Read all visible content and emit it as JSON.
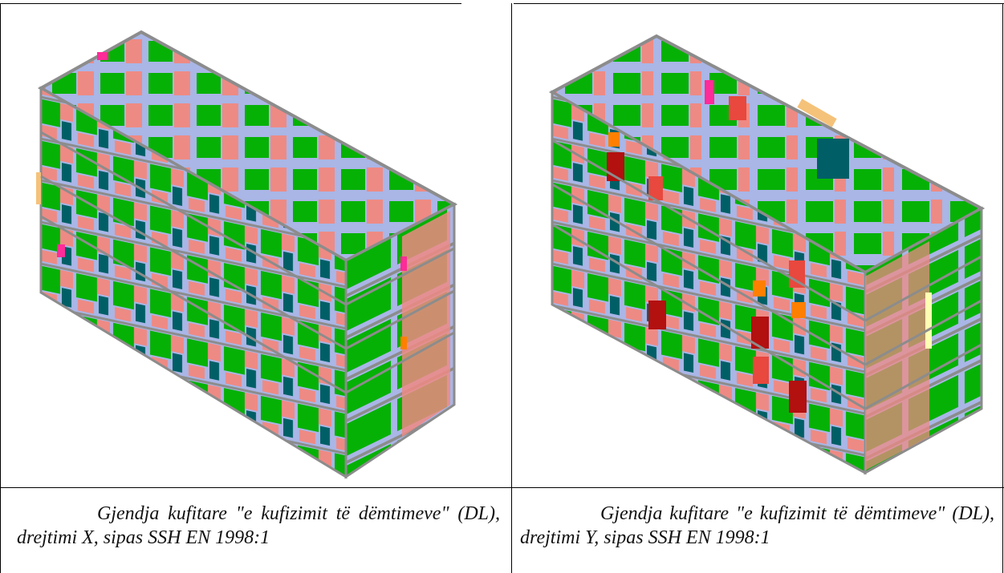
{
  "figures": [
    {
      "caption": "Gjendja kufitare \"e kufizimit të dëmtimeve\" (DL), drejtimi X, sipas SSH EN 1998:1",
      "image_icon": "building-3d-model-dl-x"
    },
    {
      "caption": "Gjendja kufitare \"e kufizimit të dëmtimeve\" (DL), drejtimi Y, sipas SSH EN 1998:1",
      "image_icon": "building-3d-model-dl-y"
    }
  ],
  "colors": {
    "green": "#06b106",
    "pink": "#ee8a84",
    "lavender": "#a9b6e6",
    "teal": "#005f66",
    "gray_frame": "#a6a6a6",
    "magenta": "#ff2b98",
    "orange": "#ff8000",
    "dark_red": "#b31010",
    "red": "#e8483e",
    "light_yellow": "#ffffb4",
    "peach": "#f5c27a"
  }
}
